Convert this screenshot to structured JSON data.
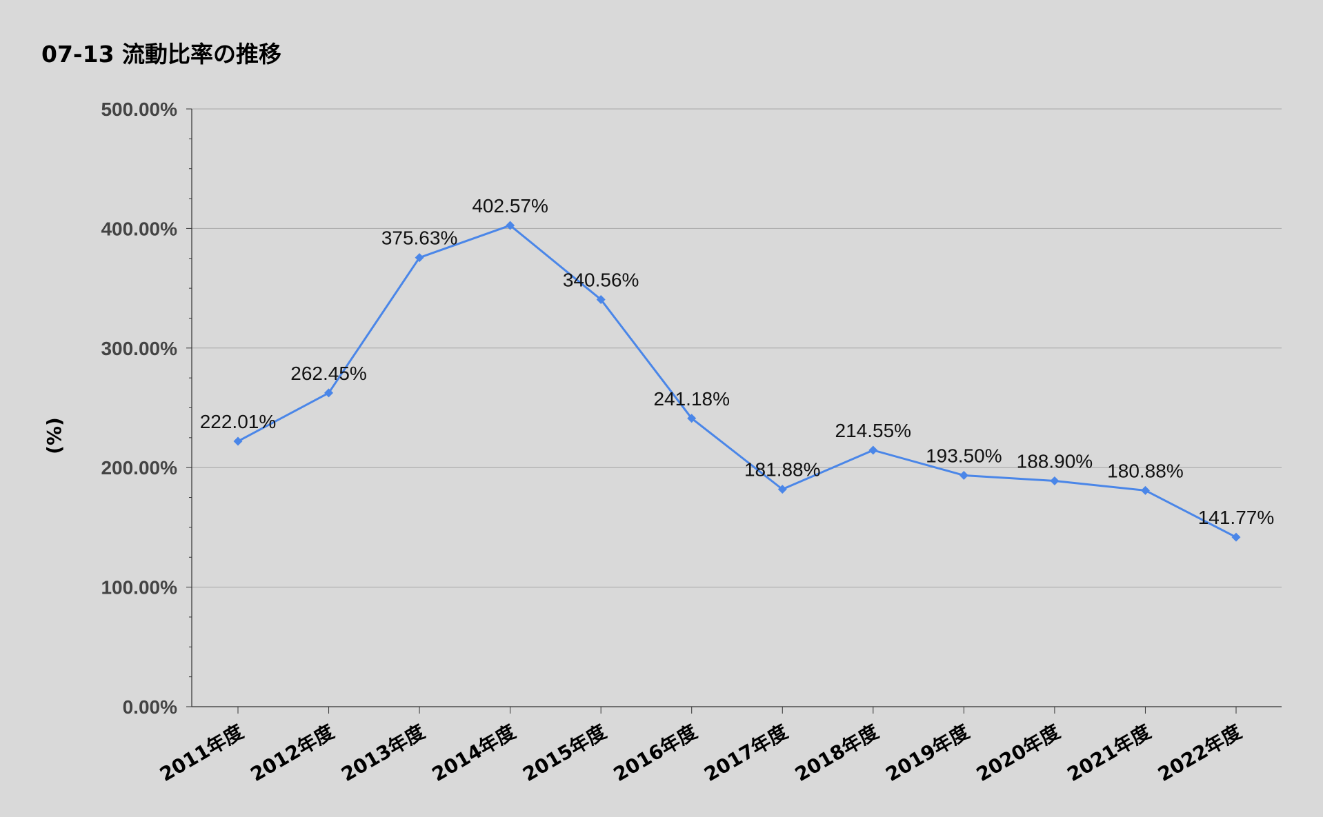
{
  "chart_data": {
    "type": "line",
    "title": "07-13 流動比率の推移",
    "xlabel": "",
    "ylabel": "(%)",
    "categories": [
      "2011年度",
      "2012年度",
      "2013年度",
      "2014年度",
      "2015年度",
      "2016年度",
      "2017年度",
      "2018年度",
      "2019年度",
      "2020年度",
      "2021年度",
      "2022年度"
    ],
    "series": [
      {
        "values": [
          222.01,
          262.45,
          375.63,
          402.57,
          340.56,
          241.18,
          181.88,
          214.55,
          193.5,
          188.9,
          180.88,
          141.77
        ],
        "data_labels": [
          "222.01%",
          "262.45%",
          "375.63%",
          "402.57%",
          "340.56%",
          "241.18%",
          "181.88%",
          "214.55%",
          "193.50%",
          "188.90%",
          "180.88%",
          "141.77%"
        ]
      }
    ],
    "ylim": [
      0,
      500
    ],
    "yticks": [
      0,
      100,
      200,
      300,
      400,
      500
    ],
    "ytick_labels": [
      "0.00%",
      "100.00%",
      "200.00%",
      "300.00%",
      "400.00%",
      "500.00%"
    ],
    "grid": true,
    "legend": "none",
    "colors": {
      "background": "#d9d9d9",
      "line": "#4a86e8",
      "grid": "#a6a6a6",
      "axis": "#333333"
    }
  }
}
